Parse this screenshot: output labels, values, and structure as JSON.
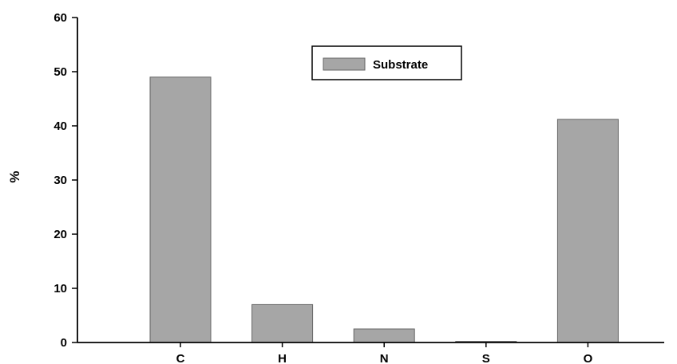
{
  "chart_data": {
    "type": "bar",
    "categories": [
      "C",
      "H",
      "N",
      "S",
      "O"
    ],
    "series": [
      {
        "name": "Substrate",
        "values": [
          49,
          7,
          2.5,
          0.2,
          41.2
        ],
        "color": "#a6a6a6"
      }
    ],
    "ylabel": "%",
    "xlabel": "",
    "ylim": [
      0,
      60
    ],
    "yticks": [
      0,
      10,
      20,
      30,
      40,
      50,
      60
    ],
    "grid": false,
    "legend": "top-center"
  }
}
